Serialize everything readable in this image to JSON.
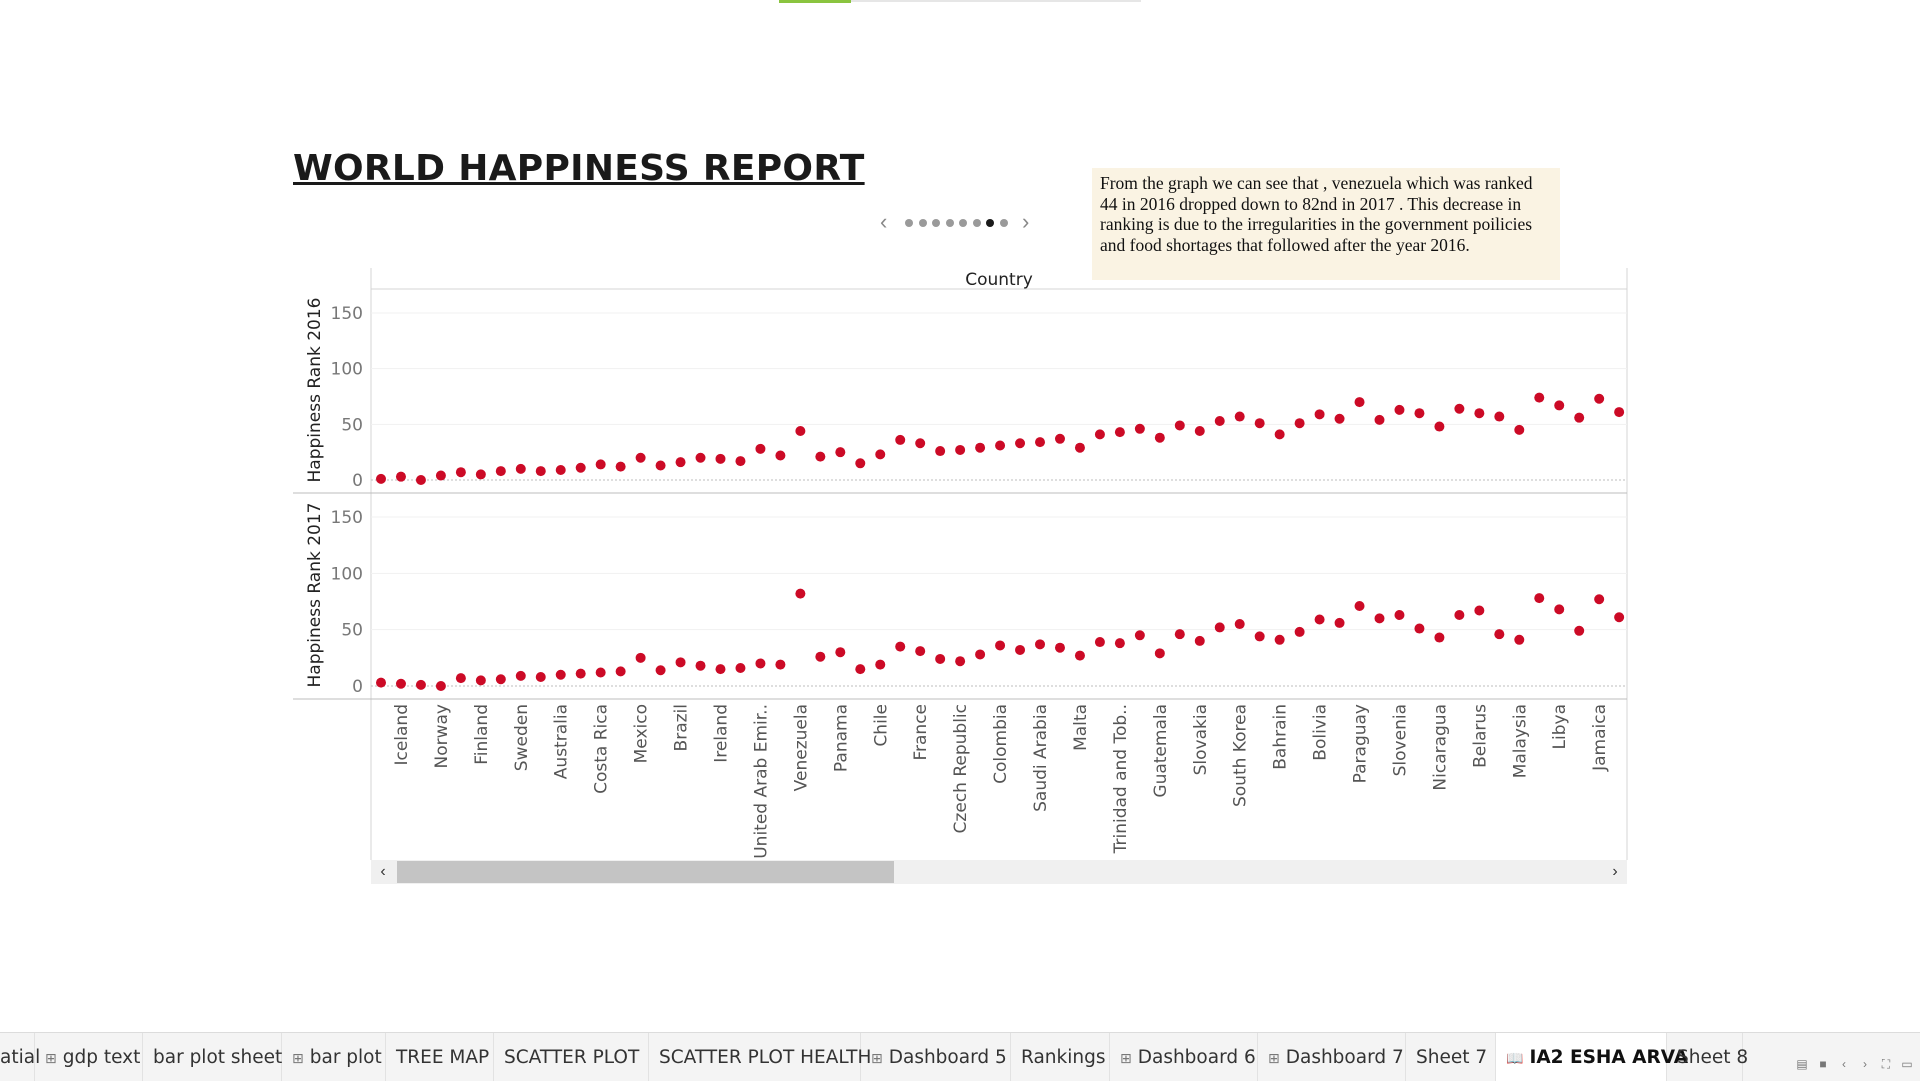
{
  "title": "WORLD HAPPINESS REPORT",
  "annotation": "From the graph we can see that , venezuela which was ranked 44 in 2016 dropped down to 82nd in 2017 . This decrease in ranking is due to the irregularities in the government poilicies  and food shortages that followed after the year 2016.",
  "story_pager": {
    "prev": "‹",
    "next": "›",
    "total": 8,
    "active_index": 6
  },
  "scrollbar": {
    "left": "‹",
    "right": "›",
    "thumb_fraction": 0.33
  },
  "tabs": [
    {
      "label": "atial",
      "icon": ""
    },
    {
      "label": "gdp text",
      "icon": "⊞"
    },
    {
      "label": "bar plot sheet",
      "icon": ""
    },
    {
      "label": "bar plot",
      "icon": "⊞"
    },
    {
      "label": "TREE MAP",
      "icon": ""
    },
    {
      "label": "SCATTER PLOT",
      "icon": ""
    },
    {
      "label": "SCATTER PLOT HEALTH",
      "icon": ""
    },
    {
      "label": "Dashboard 5",
      "icon": "⊞"
    },
    {
      "label": "Rankings",
      "icon": ""
    },
    {
      "label": "Dashboard 6",
      "icon": "⊞"
    },
    {
      "label": "Dashboard 7",
      "icon": "⊞"
    },
    {
      "label": "Sheet 7",
      "icon": ""
    },
    {
      "label": "IA2 ESHA ARVA",
      "icon": "📖",
      "active": true
    },
    {
      "label": "Sheet 8",
      "icon": ""
    }
  ],
  "status_icons": [
    "grid-view-icon",
    "single-view-icon",
    "prev-sheet-icon",
    "next-sheet-icon",
    "fullscreen-icon",
    "present-icon"
  ],
  "chart_data": {
    "type": "scatter",
    "top_title": "Country",
    "categories": [
      "",
      "Iceland",
      "",
      "Norway",
      "",
      "Finland",
      "",
      "Sweden",
      "",
      "Australia",
      "",
      "Costa Rica",
      "",
      "Mexico",
      "",
      "Brazil",
      "",
      "Ireland",
      "",
      "United Arab Emir..",
      "",
      "Venezuela",
      "",
      "Panama",
      "",
      "Chile",
      "",
      "France",
      "",
      "Czech Republic",
      "",
      "Colombia",
      "",
      "Saudi Arabia",
      "",
      "Malta",
      "",
      "Trinidad and Tob..",
      "",
      "Guatemala",
      "",
      "Slovakia",
      "",
      "South Korea",
      "",
      "Bahrain",
      "",
      "Bolivia",
      "",
      "Paraguay",
      "",
      "Slovenia",
      "",
      "Nicaragua",
      "",
      "Belarus",
      "",
      "Malaysia",
      "",
      "Libya",
      "",
      "Jamaica",
      ""
    ],
    "color": "#cc0a26",
    "series": [
      {
        "name": "Happiness Rank 2016",
        "ylim": [
          0,
          150
        ],
        "ticks": [
          "0",
          "50",
          "100",
          "150"
        ],
        "values": [
          1,
          3,
          0,
          4,
          7,
          5,
          8,
          10,
          8,
          9,
          11,
          14,
          12,
          20,
          13,
          16,
          20,
          19,
          17,
          28,
          22,
          44,
          21,
          25,
          15,
          23,
          36,
          33,
          26,
          27,
          29,
          31,
          33,
          34,
          37,
          29,
          41,
          43,
          46,
          38,
          49,
          44,
          53,
          57,
          51,
          41,
          51,
          59,
          55,
          70,
          54,
          63,
          60,
          48,
          64,
          60,
          57,
          45,
          74,
          67,
          56,
          73,
          61
        ]
      },
      {
        "name": "Happiness Rank 2017",
        "ylim": [
          0,
          150
        ],
        "ticks": [
          "0",
          "50",
          "100",
          "150"
        ],
        "values": [
          3,
          2,
          1,
          0,
          7,
          5,
          6,
          9,
          8,
          10,
          11,
          12,
          13,
          25,
          14,
          21,
          18,
          15,
          16,
          20,
          19,
          82,
          26,
          30,
          15,
          19,
          35,
          31,
          24,
          22,
          28,
          36,
          32,
          37,
          34,
          27,
          39,
          38,
          45,
          29,
          46,
          40,
          52,
          55,
          44,
          41,
          48,
          59,
          56,
          71,
          60,
          63,
          51,
          43,
          63,
          67,
          46,
          41,
          78,
          68,
          49,
          77,
          61
        ]
      }
    ]
  }
}
